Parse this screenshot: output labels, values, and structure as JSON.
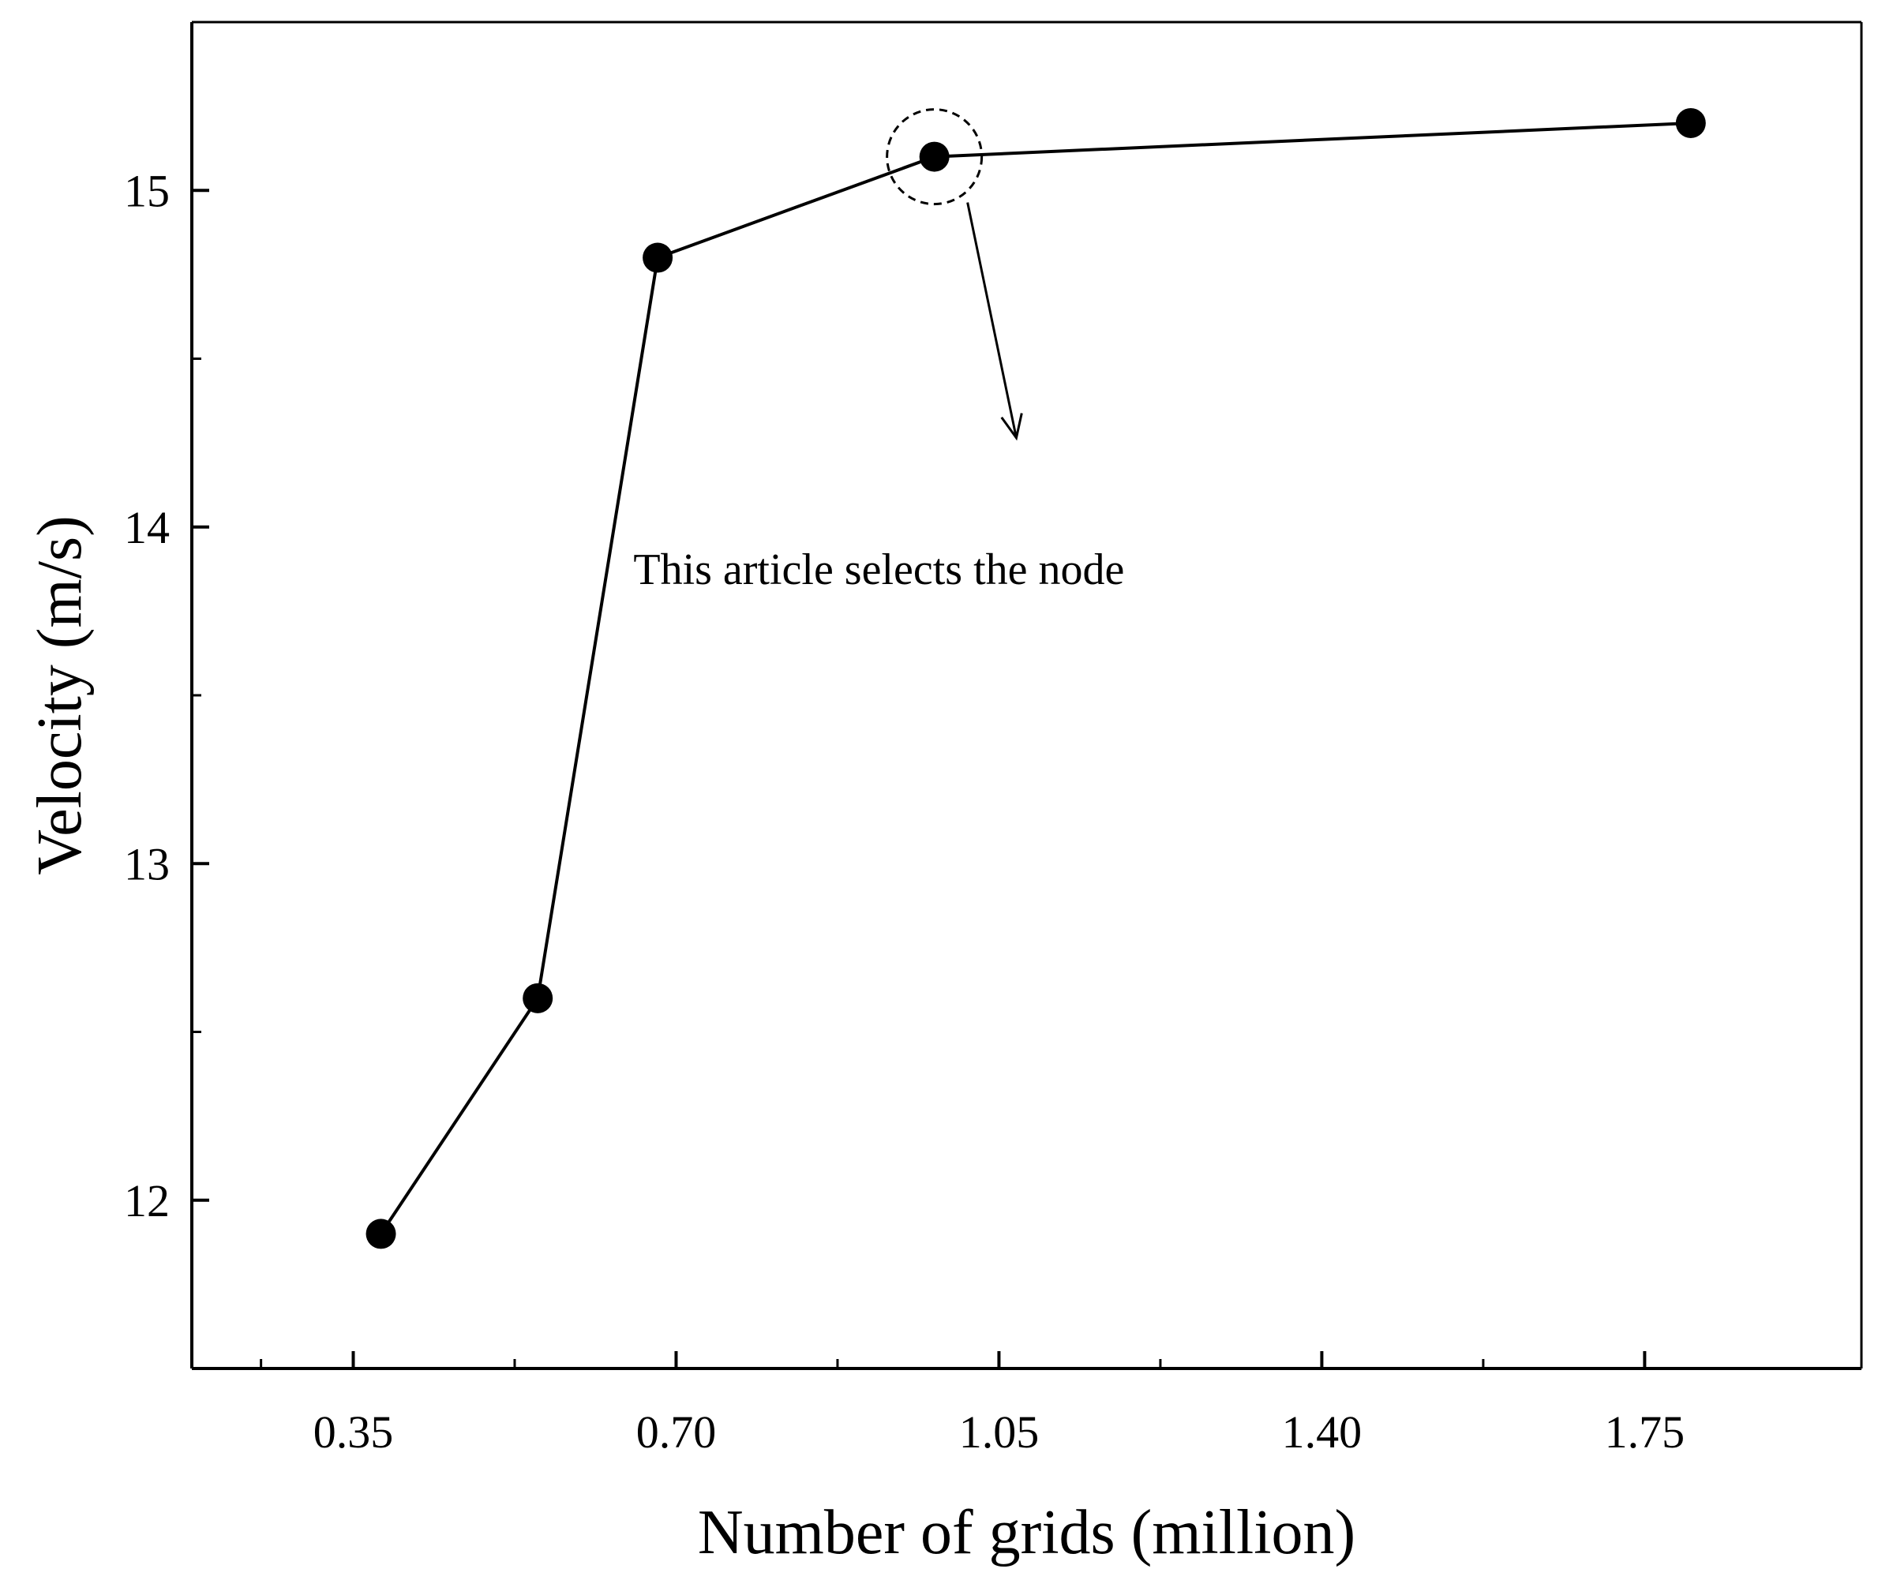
{
  "chart_data": {
    "type": "line",
    "title": "",
    "xlabel": "Number of grids (million)",
    "ylabel": "Velocity (m/s)",
    "xlim": [
      0.175,
      1.985
    ],
    "ylim": [
      11.5,
      15.5
    ],
    "x_ticks": [
      0.35,
      0.7,
      1.05,
      1.4,
      1.75
    ],
    "x_tick_labels": [
      "0.35",
      "0.70",
      "1.05",
      "1.40",
      "1.75"
    ],
    "x_minor_ticks": [
      0.25,
      0.525,
      0.875,
      1.225,
      1.575
    ],
    "y_ticks": [
      12,
      13,
      14,
      15
    ],
    "y_tick_labels": [
      "12",
      "13",
      "14",
      "15"
    ],
    "y_minor_ticks": [
      12.5,
      13.5,
      14.5
    ],
    "grid": false,
    "legend": "none",
    "series": [
      {
        "x": [
          0.38,
          0.55,
          0.68,
          0.98,
          1.8
        ],
        "y": [
          11.9,
          12.6,
          14.8,
          15.1,
          15.2
        ],
        "color": "#000000",
        "marker": "circle"
      }
    ],
    "annotation": {
      "text": "This article selects the node",
      "target_index": 3,
      "text_at": [
        0.83,
        14.1
      ],
      "arrow_to": [
        1.05,
        14.3
      ]
    }
  }
}
